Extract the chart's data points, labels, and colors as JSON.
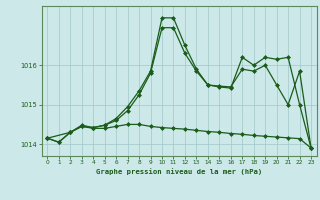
{
  "title": "Graphe pression niveau de la mer (hPa)",
  "bg_color": "#cce8e8",
  "grid_color": "#a0c8c8",
  "line_color": "#1a5c1a",
  "xlim": [
    -0.5,
    23.5
  ],
  "ylim": [
    1013.7,
    1017.5
  ],
  "yticks": [
    1014,
    1015,
    1016
  ],
  "xticks": [
    0,
    1,
    2,
    3,
    4,
    5,
    6,
    7,
    8,
    9,
    10,
    11,
    12,
    13,
    14,
    15,
    16,
    17,
    18,
    19,
    20,
    21,
    22,
    23
  ],
  "line1_x": [
    0,
    1,
    2,
    3,
    4,
    5,
    6,
    7,
    8,
    9,
    10,
    11,
    12,
    13,
    14,
    15,
    16,
    17,
    18,
    19,
    20,
    21,
    22,
    23
  ],
  "line1_y": [
    1014.15,
    1014.05,
    1014.3,
    1014.45,
    1014.4,
    1014.4,
    1014.45,
    1014.5,
    1014.5,
    1014.45,
    1014.42,
    1014.4,
    1014.38,
    1014.35,
    1014.32,
    1014.3,
    1014.27,
    1014.25,
    1014.22,
    1014.2,
    1014.18,
    1014.16,
    1014.14,
    1013.9
  ],
  "line2_x": [
    0,
    2,
    3,
    4,
    5,
    6,
    7,
    8,
    9,
    10,
    11,
    12,
    13,
    14,
    15,
    16,
    17,
    18,
    19,
    20,
    21,
    22,
    23
  ],
  "line2_y": [
    1014.15,
    1014.3,
    1014.48,
    1014.42,
    1014.48,
    1014.6,
    1014.85,
    1015.25,
    1015.8,
    1016.95,
    1016.95,
    1016.3,
    1015.85,
    1015.5,
    1015.45,
    1015.42,
    1016.2,
    1016.0,
    1016.2,
    1016.15,
    1016.2,
    1015.0,
    1013.9
  ],
  "line3_x": [
    0,
    1,
    2,
    3,
    4,
    5,
    6,
    7,
    8,
    9,
    10,
    11,
    12,
    13,
    14,
    15,
    16,
    17,
    18,
    19,
    20,
    21,
    22,
    23
  ],
  "line3_y": [
    1014.15,
    1014.05,
    1014.3,
    1014.45,
    1014.42,
    1014.48,
    1014.65,
    1014.95,
    1015.35,
    1015.85,
    1017.2,
    1017.2,
    1016.5,
    1015.9,
    1015.5,
    1015.47,
    1015.45,
    1015.9,
    1015.85,
    1016.0,
    1015.5,
    1015.0,
    1015.85,
    1013.9
  ]
}
